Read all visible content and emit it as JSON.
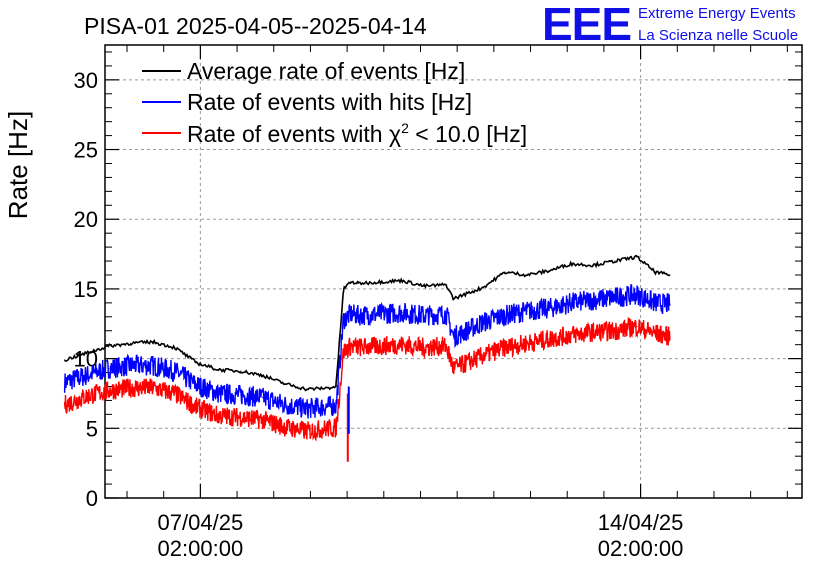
{
  "header": {
    "title": "PISA-01 2025-04-05--2025-04-14",
    "logo_text": "EEE",
    "logo_line1": "Extreme Energy Events",
    "logo_line2": "La Scienza nelle Scuole"
  },
  "colors": {
    "average": "#000000",
    "hits": "#0000ff",
    "chi2": "#ff0000",
    "grid": "#9a9a9a",
    "logo": "#1010e6"
  },
  "chart_data": {
    "type": "line",
    "title": "PISA-01 2025-04-05--2025-04-14",
    "xlabel": "",
    "ylabel": "Rate [Hz]",
    "ylim": [
      0,
      32.5
    ],
    "xlim_days": [
      -1.3,
      8.2
    ],
    "x_unit": "days since 07/04/25 02:00:00",
    "yticks": [
      "0",
      "5",
      "10",
      "15",
      "20",
      "25",
      "30"
    ],
    "ytick_values": [
      0,
      5,
      10,
      15,
      20,
      25,
      30
    ],
    "xticks": [
      {
        "day": 0,
        "date": "07/04/25",
        "time": "02:00:00"
      },
      {
        "day": 6,
        "date": "14/04/25",
        "time": "02:00:00"
      }
    ],
    "grid": true,
    "legend_position": "top-left",
    "legend": {
      "l1": "Average rate of events [Hz]",
      "l2": "Rate of events with hits [Hz]",
      "l3_prefix": "Rate of events with ",
      "l3_chi": "χ",
      "l3_sup": "2",
      "l3_suffix": " < 10.0 [Hz]"
    },
    "x": [
      -1.85,
      -1.55,
      -1.25,
      -0.95,
      -0.65,
      -0.35,
      -0.05,
      0.25,
      0.55,
      0.85,
      1.15,
      1.45,
      1.75,
      1.85,
      1.95,
      2.05,
      2.15,
      2.45,
      2.75,
      3.05,
      3.35,
      3.45,
      3.55,
      3.85,
      4.15,
      4.45,
      4.75,
      5.05,
      5.35,
      5.65,
      5.95,
      6.2,
      6.4
    ],
    "series": [
      {
        "name": "Average rate of events [Hz]",
        "key": "average",
        "values": [
          9.9,
          10.4,
          10.9,
          11.1,
          11.2,
          10.8,
          9.7,
          9.2,
          9.1,
          8.8,
          8.2,
          7.8,
          7.9,
          8.0,
          15.0,
          15.5,
          15.4,
          15.5,
          15.6,
          15.2,
          15.3,
          14.3,
          14.5,
          15.1,
          16.2,
          16.0,
          16.3,
          16.8,
          16.7,
          17.0,
          17.3,
          16.2,
          16.0
        ]
      },
      {
        "name": "Rate of events with hits [Hz]",
        "key": "hits",
        "values": [
          8.3,
          8.8,
          9.3,
          9.5,
          9.5,
          9.1,
          8.1,
          7.5,
          7.4,
          7.2,
          6.7,
          6.4,
          6.6,
          6.6,
          12.8,
          13.2,
          13.1,
          13.2,
          13.3,
          13.1,
          13.2,
          11.6,
          11.8,
          12.6,
          13.1,
          13.4,
          13.6,
          14.0,
          14.2,
          14.4,
          14.6,
          14.0,
          13.9
        ]
      },
      {
        "name": "Rate of events with χ2 < 10.0 [Hz]",
        "key": "chi2",
        "values": [
          6.7,
          7.3,
          7.7,
          7.9,
          7.9,
          7.5,
          6.5,
          5.9,
          5.8,
          5.6,
          5.1,
          4.8,
          5.0,
          5.0,
          10.5,
          10.9,
          10.8,
          10.9,
          11.0,
          10.8,
          10.9,
          9.3,
          9.5,
          10.2,
          10.8,
          11.1,
          11.4,
          11.7,
          11.9,
          12.0,
          12.3,
          11.8,
          11.6
        ]
      }
    ]
  }
}
